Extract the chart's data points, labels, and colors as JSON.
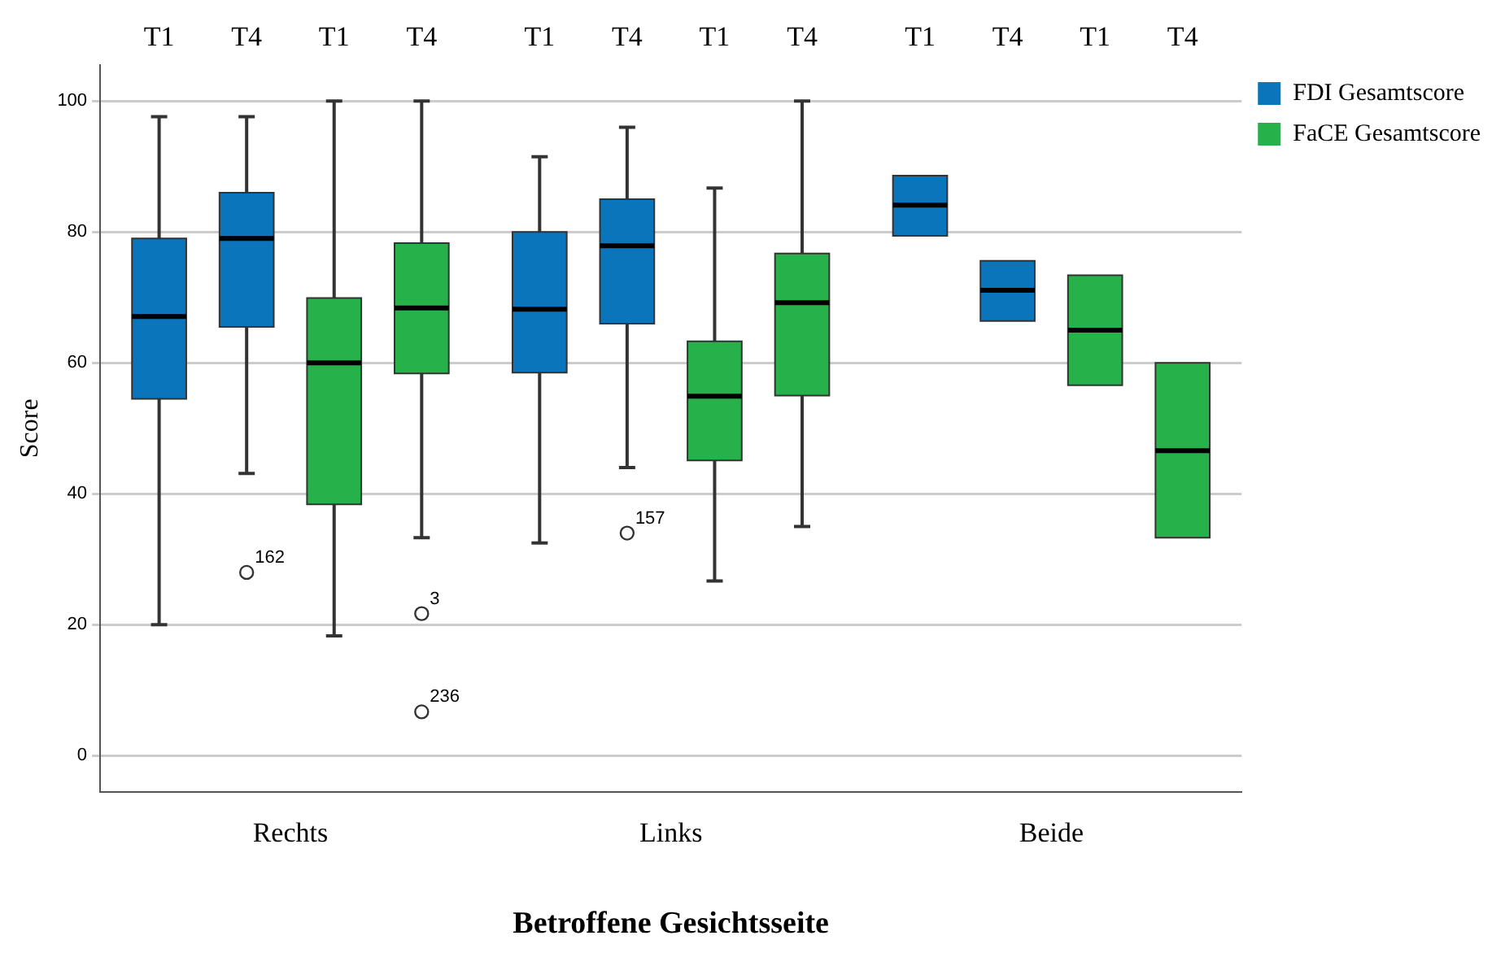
{
  "chart_data": {
    "type": "box",
    "xlabel": "Betroffene Gesichtsseite",
    "ylabel": "Score",
    "categories": [
      "Rechts",
      "Links",
      "Beide"
    ],
    "ylim": [
      -5.5,
      105.5
    ],
    "yticks": [
      0,
      20,
      40,
      60,
      80,
      100
    ],
    "grid": "y",
    "legend": "top right",
    "series": [
      {
        "name": "FDI Gesamtscore",
        "color": "#0a75bb",
        "boxes": [
          {
            "low": 20,
            "q1": 54.5,
            "median": 67.1,
            "q3": 79,
            "high": 97.6
          },
          {
            "low": 32.5,
            "q1": 58.5,
            "median": 68.2,
            "q3": 80,
            "high": 91.5
          },
          {
            "low": 79.4,
            "q1": 79.4,
            "median": 84.1,
            "q3": 88.6,
            "high": 88.6
          }
        ]
      },
      {
        "color": "#0a75bb",
        "boxes": [
          {
            "low": 43.1,
            "q1": 65.5,
            "median": 79,
            "q3": 86,
            "high": 97.6,
            "outliers": [
              28
            ]
          },
          {
            "low": 44,
            "q1": 66,
            "median": 77.9,
            "q3": 85,
            "high": 96,
            "outliers": [
              34
            ]
          },
          {
            "low": 66.4,
            "q1": 66.4,
            "median": 71.1,
            "q3": 75.6,
            "high": 75.6
          }
        ]
      },
      {
        "name": "FaCE Gesamtscore",
        "color": "#27b14b",
        "boxes": [
          {
            "low": 18.3,
            "q1": 38.4,
            "median": 60,
            "q3": 69.9,
            "high": 100
          },
          {
            "low": 26.7,
            "q1": 45.1,
            "median": 54.9,
            "q3": 63.3,
            "high": 86.7
          },
          {
            "low": 56.6,
            "q1": 56.6,
            "median": 65,
            "q3": 73.4,
            "high": 73.4
          }
        ]
      },
      {
        "color": "#27b14b",
        "boxes": [
          {
            "low": 33.3,
            "q1": 58.4,
            "median": 68.4,
            "q3": 78.3,
            "high": 100,
            "outliers": [
              21.7,
              6.7
            ]
          },
          {
            "low": 35,
            "q1": 55,
            "median": 69.2,
            "q3": 76.7,
            "high": 100
          },
          {
            "low": 33.3,
            "q1": 33.3,
            "median": 46.6,
            "q3": 60,
            "high": 60
          }
        ]
      }
    ],
    "annotations": [
      "T1",
      "T4",
      "T1",
      "T4",
      "T1",
      "T4",
      "T1",
      "T4",
      "T1",
      "T4",
      "T1",
      "T4",
      "162",
      "3",
      "236",
      "157"
    ]
  }
}
